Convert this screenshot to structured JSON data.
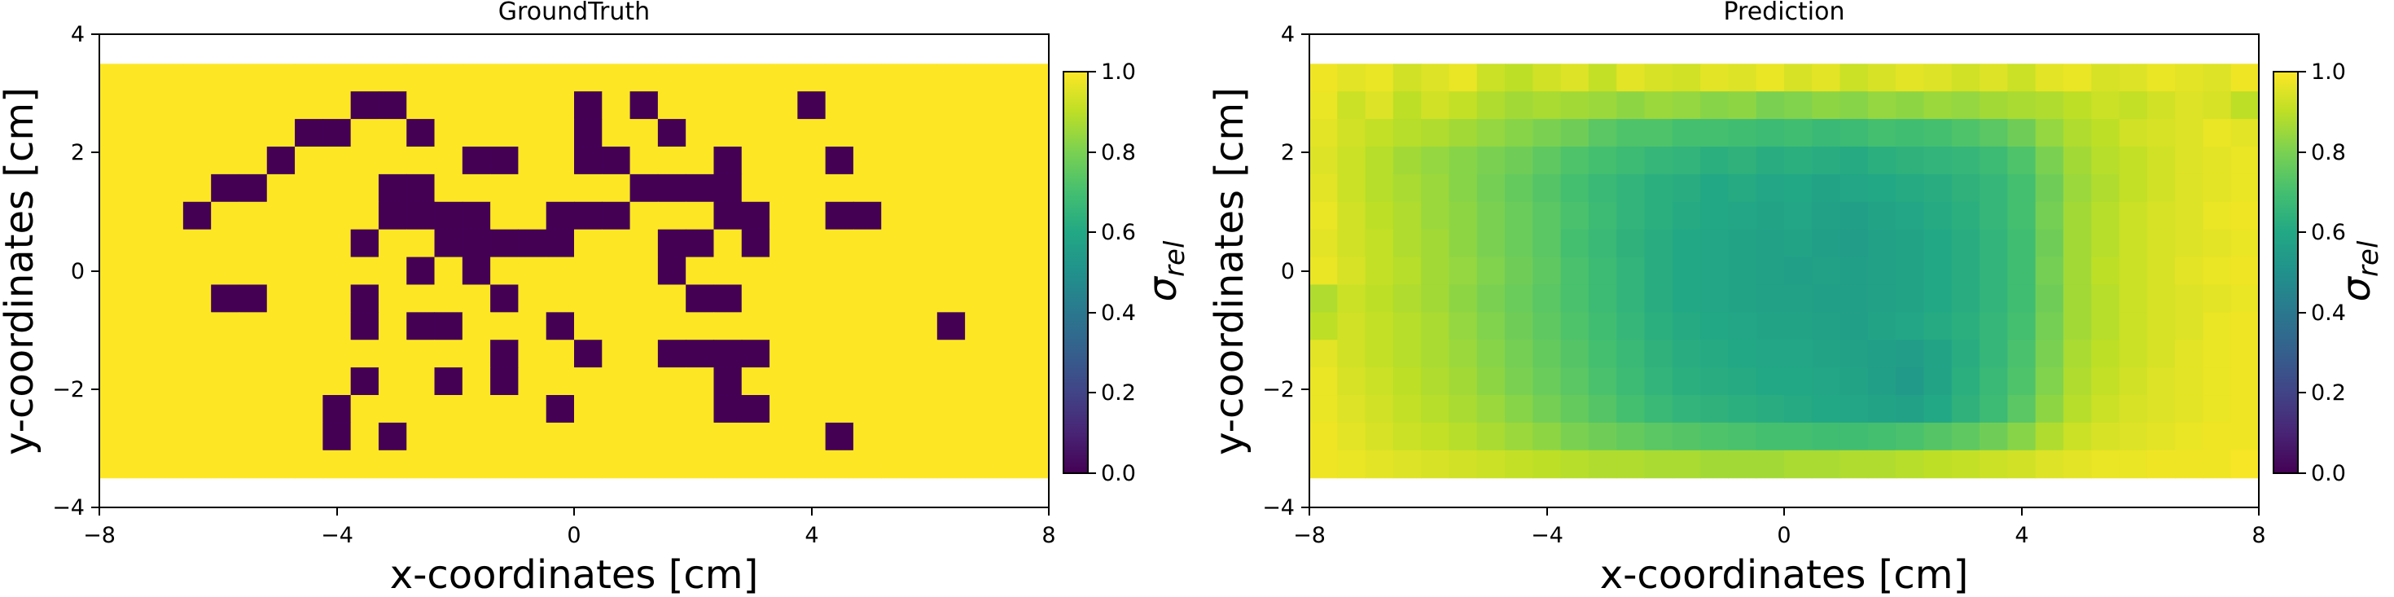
{
  "colors": {
    "background": "#ffffff",
    "axis": "#000000",
    "colormap": "viridis"
  },
  "chart_data": [
    {
      "type": "heatmap",
      "title": "GroundTruth",
      "xlabel": "x-coordinates [cm]",
      "ylabel": "y-coordinates [cm]",
      "xlim": [
        -8,
        8
      ],
      "ylim": [
        -4,
        4
      ],
      "xticks": [
        -8,
        -4,
        0,
        4,
        8
      ],
      "yticks": [
        -4,
        -2,
        0,
        2,
        4
      ],
      "xtick_labels": [
        "−8",
        "−4",
        "0",
        "4",
        "8"
      ],
      "ytick_labels": [
        "−4",
        "−2",
        "0",
        "2",
        "4"
      ],
      "colorbar": {
        "label": "σ",
        "label_sub": "rel",
        "range": [
          0,
          1
        ],
        "ticks": [
          "0.0",
          "0.2",
          "0.4",
          "0.6",
          "0.8",
          "1.0"
        ]
      },
      "grid": {
        "x_start": -8,
        "x_end": 8,
        "y_start": 3.5,
        "y_end": -3.5,
        "cols": 34,
        "rows": 15
      },
      "values": [
        [
          1,
          1,
          1,
          1,
          1,
          1,
          1,
          1,
          1,
          1,
          1,
          1,
          1,
          1,
          1,
          1,
          1,
          1,
          1,
          1,
          1,
          1,
          1,
          1,
          1,
          1,
          1,
          1,
          1,
          1,
          1,
          1,
          1,
          1
        ],
        [
          1,
          1,
          1,
          1,
          1,
          1,
          1,
          1,
          1,
          0,
          0,
          1,
          1,
          1,
          1,
          1,
          1,
          0,
          1,
          0,
          1,
          1,
          1,
          1,
          1,
          0,
          1,
          1,
          1,
          1,
          1,
          1,
          1,
          1
        ],
        [
          1,
          1,
          1,
          1,
          1,
          1,
          1,
          0,
          0,
          1,
          1,
          0,
          1,
          1,
          1,
          1,
          1,
          0,
          1,
          1,
          0,
          1,
          1,
          1,
          1,
          1,
          1,
          1,
          1,
          1,
          1,
          1,
          1,
          1
        ],
        [
          1,
          1,
          1,
          1,
          1,
          1,
          0,
          1,
          1,
          1,
          1,
          1,
          1,
          0,
          0,
          1,
          1,
          0,
          0,
          1,
          1,
          1,
          0,
          1,
          1,
          1,
          0,
          1,
          1,
          1,
          1,
          1,
          1,
          1
        ],
        [
          1,
          1,
          1,
          1,
          0,
          0,
          1,
          1,
          1,
          1,
          0,
          0,
          1,
          1,
          1,
          1,
          1,
          1,
          1,
          0,
          0,
          0,
          0,
          1,
          1,
          1,
          1,
          1,
          1,
          1,
          1,
          1,
          1,
          1
        ],
        [
          1,
          1,
          1,
          0,
          1,
          1,
          1,
          1,
          1,
          1,
          0,
          0,
          0,
          0,
          1,
          1,
          0,
          0,
          0,
          1,
          1,
          1,
          0,
          0,
          1,
          1,
          0,
          0,
          1,
          1,
          1,
          1,
          1,
          1
        ],
        [
          1,
          1,
          1,
          1,
          1,
          1,
          1,
          1,
          1,
          0,
          1,
          1,
          0,
          0,
          0,
          0,
          0,
          1,
          1,
          1,
          0,
          0,
          1,
          0,
          1,
          1,
          1,
          1,
          1,
          1,
          1,
          1,
          1,
          1
        ],
        [
          1,
          1,
          1,
          1,
          1,
          1,
          1,
          1,
          1,
          1,
          1,
          0,
          1,
          0,
          1,
          1,
          1,
          1,
          1,
          1,
          0,
          1,
          1,
          1,
          1,
          1,
          1,
          1,
          1,
          1,
          1,
          1,
          1,
          1
        ],
        [
          1,
          1,
          1,
          1,
          0,
          0,
          1,
          1,
          1,
          0,
          1,
          1,
          1,
          1,
          0,
          1,
          1,
          1,
          1,
          1,
          1,
          0,
          0,
          1,
          1,
          1,
          1,
          1,
          1,
          1,
          1,
          1,
          1,
          1
        ],
        [
          1,
          1,
          1,
          1,
          1,
          1,
          1,
          1,
          1,
          0,
          1,
          0,
          0,
          1,
          1,
          1,
          0,
          1,
          1,
          1,
          1,
          1,
          1,
          1,
          1,
          1,
          1,
          1,
          1,
          1,
          0,
          1,
          1,
          1
        ],
        [
          1,
          1,
          1,
          1,
          1,
          1,
          1,
          1,
          1,
          1,
          1,
          1,
          1,
          1,
          0,
          1,
          1,
          0,
          1,
          1,
          0,
          0,
          0,
          0,
          1,
          1,
          1,
          1,
          1,
          1,
          1,
          1,
          1,
          1
        ],
        [
          1,
          1,
          1,
          1,
          1,
          1,
          1,
          1,
          1,
          0,
          1,
          1,
          0,
          1,
          0,
          1,
          1,
          1,
          1,
          1,
          1,
          1,
          0,
          1,
          1,
          1,
          1,
          1,
          1,
          1,
          1,
          1,
          1,
          1
        ],
        [
          1,
          1,
          1,
          1,
          1,
          1,
          1,
          1,
          0,
          1,
          1,
          1,
          1,
          1,
          1,
          1,
          0,
          1,
          1,
          1,
          1,
          1,
          0,
          0,
          1,
          1,
          1,
          1,
          1,
          1,
          1,
          1,
          1,
          1
        ],
        [
          1,
          1,
          1,
          1,
          1,
          1,
          1,
          1,
          0,
          1,
          0,
          1,
          1,
          1,
          1,
          1,
          1,
          1,
          1,
          1,
          1,
          1,
          1,
          1,
          1,
          1,
          0,
          1,
          1,
          1,
          1,
          1,
          1,
          1
        ],
        [
          1,
          1,
          1,
          1,
          1,
          1,
          1,
          1,
          1,
          1,
          1,
          1,
          1,
          1,
          1,
          1,
          1,
          1,
          1,
          1,
          1,
          1,
          1,
          1,
          1,
          1,
          1,
          1,
          1,
          1,
          1,
          1,
          1,
          1
        ]
      ]
    },
    {
      "type": "heatmap",
      "title": "Prediction",
      "xlabel": "x-coordinates [cm]",
      "ylabel": "y-coordinates [cm]",
      "xlim": [
        -8,
        8
      ],
      "ylim": [
        -4,
        4
      ],
      "xticks": [
        -8,
        -4,
        0,
        4,
        8
      ],
      "yticks": [
        -4,
        -2,
        0,
        2,
        4
      ],
      "xtick_labels": [
        "−8",
        "−4",
        "0",
        "4",
        "8"
      ],
      "ytick_labels": [
        "−4",
        "−2",
        "0",
        "2",
        "4"
      ],
      "colorbar": {
        "label": "σ",
        "label_sub": "rel",
        "range": [
          0,
          1
        ],
        "ticks": [
          "0.0",
          "0.2",
          "0.4",
          "0.6",
          "0.8",
          "1.0"
        ]
      },
      "grid": {
        "x_start": -8,
        "x_end": 8,
        "y_start": 3.5,
        "y_end": -3.5,
        "cols": 34,
        "rows": 15
      },
      "values": [
        [
          0.98,
          0.96,
          0.97,
          0.93,
          0.95,
          0.97,
          0.92,
          0.9,
          0.93,
          0.95,
          0.91,
          0.96,
          0.94,
          0.93,
          0.96,
          0.95,
          0.97,
          0.94,
          0.96,
          0.92,
          0.94,
          0.96,
          0.95,
          0.93,
          0.95,
          0.92,
          0.96,
          0.97,
          0.94,
          0.95,
          0.97,
          0.96,
          0.95,
          0.98
        ],
        [
          0.97,
          0.92,
          0.95,
          0.9,
          0.93,
          0.91,
          0.88,
          0.86,
          0.87,
          0.86,
          0.85,
          0.83,
          0.85,
          0.84,
          0.82,
          0.83,
          0.8,
          0.81,
          0.83,
          0.82,
          0.84,
          0.83,
          0.85,
          0.84,
          0.86,
          0.87,
          0.88,
          0.9,
          0.92,
          0.91,
          0.93,
          0.95,
          0.94,
          0.9
        ],
        [
          0.96,
          0.93,
          0.91,
          0.89,
          0.88,
          0.86,
          0.84,
          0.82,
          0.8,
          0.78,
          0.74,
          0.72,
          0.72,
          0.7,
          0.7,
          0.69,
          0.68,
          0.69,
          0.67,
          0.68,
          0.7,
          0.69,
          0.7,
          0.72,
          0.74,
          0.78,
          0.84,
          0.88,
          0.9,
          0.93,
          0.94,
          0.95,
          0.97,
          0.96
        ],
        [
          0.95,
          0.92,
          0.89,
          0.86,
          0.84,
          0.82,
          0.8,
          0.78,
          0.75,
          0.72,
          0.7,
          0.68,
          0.66,
          0.65,
          0.63,
          0.64,
          0.62,
          0.63,
          0.62,
          0.61,
          0.63,
          0.64,
          0.65,
          0.66,
          0.68,
          0.72,
          0.8,
          0.86,
          0.89,
          0.91,
          0.93,
          0.95,
          0.96,
          0.97
        ],
        [
          0.96,
          0.92,
          0.89,
          0.87,
          0.85,
          0.82,
          0.79,
          0.76,
          0.73,
          0.7,
          0.67,
          0.65,
          0.63,
          0.62,
          0.6,
          0.61,
          0.59,
          0.6,
          0.58,
          0.59,
          0.6,
          0.61,
          0.62,
          0.64,
          0.66,
          0.7,
          0.78,
          0.85,
          0.88,
          0.91,
          0.93,
          0.95,
          0.96,
          0.97
        ],
        [
          0.97,
          0.93,
          0.9,
          0.88,
          0.85,
          0.83,
          0.8,
          0.77,
          0.74,
          0.71,
          0.68,
          0.65,
          0.63,
          0.61,
          0.6,
          0.59,
          0.58,
          0.59,
          0.57,
          0.56,
          0.58,
          0.59,
          0.61,
          0.63,
          0.66,
          0.7,
          0.79,
          0.86,
          0.89,
          0.92,
          0.94,
          0.95,
          0.97,
          0.98
        ],
        [
          0.96,
          0.93,
          0.91,
          0.88,
          0.86,
          0.83,
          0.8,
          0.77,
          0.74,
          0.7,
          0.67,
          0.64,
          0.62,
          0.6,
          0.59,
          0.58,
          0.57,
          0.58,
          0.56,
          0.55,
          0.57,
          0.58,
          0.6,
          0.62,
          0.65,
          0.69,
          0.78,
          0.86,
          0.89,
          0.92,
          0.94,
          0.95,
          0.96,
          0.97
        ],
        [
          0.97,
          0.94,
          0.91,
          0.89,
          0.86,
          0.84,
          0.81,
          0.78,
          0.75,
          0.71,
          0.68,
          0.65,
          0.62,
          0.6,
          0.59,
          0.58,
          0.57,
          0.56,
          0.57,
          0.56,
          0.57,
          0.58,
          0.6,
          0.62,
          0.65,
          0.69,
          0.79,
          0.86,
          0.9,
          0.92,
          0.94,
          0.96,
          0.97,
          0.98
        ],
        [
          0.88,
          0.92,
          0.9,
          0.88,
          0.86,
          0.83,
          0.8,
          0.77,
          0.74,
          0.71,
          0.68,
          0.65,
          0.62,
          0.6,
          0.59,
          0.58,
          0.57,
          0.57,
          0.56,
          0.56,
          0.57,
          0.58,
          0.6,
          0.62,
          0.65,
          0.69,
          0.78,
          0.86,
          0.89,
          0.92,
          0.94,
          0.95,
          0.96,
          0.97
        ],
        [
          0.9,
          0.93,
          0.91,
          0.89,
          0.87,
          0.84,
          0.81,
          0.78,
          0.75,
          0.72,
          0.69,
          0.66,
          0.63,
          0.61,
          0.6,
          0.59,
          0.58,
          0.58,
          0.57,
          0.56,
          0.58,
          0.59,
          0.61,
          0.63,
          0.66,
          0.7,
          0.79,
          0.86,
          0.89,
          0.92,
          0.94,
          0.95,
          0.97,
          0.98
        ],
        [
          0.96,
          0.93,
          0.91,
          0.89,
          0.87,
          0.85,
          0.82,
          0.79,
          0.76,
          0.73,
          0.7,
          0.67,
          0.64,
          0.62,
          0.61,
          0.6,
          0.59,
          0.59,
          0.58,
          0.57,
          0.56,
          0.55,
          0.58,
          0.62,
          0.66,
          0.71,
          0.8,
          0.87,
          0.9,
          0.92,
          0.94,
          0.96,
          0.97,
          0.98
        ],
        [
          0.97,
          0.94,
          0.92,
          0.9,
          0.88,
          0.86,
          0.83,
          0.8,
          0.77,
          0.74,
          0.71,
          0.68,
          0.65,
          0.63,
          0.62,
          0.61,
          0.6,
          0.6,
          0.59,
          0.58,
          0.56,
          0.54,
          0.58,
          0.63,
          0.67,
          0.72,
          0.81,
          0.88,
          0.91,
          0.93,
          0.95,
          0.96,
          0.97,
          0.98
        ],
        [
          0.97,
          0.95,
          0.93,
          0.91,
          0.89,
          0.87,
          0.85,
          0.82,
          0.79,
          0.76,
          0.73,
          0.7,
          0.67,
          0.65,
          0.64,
          0.63,
          0.62,
          0.61,
          0.6,
          0.59,
          0.58,
          0.57,
          0.6,
          0.64,
          0.68,
          0.74,
          0.83,
          0.89,
          0.92,
          0.94,
          0.95,
          0.96,
          0.97,
          0.98
        ],
        [
          0.98,
          0.96,
          0.94,
          0.92,
          0.91,
          0.89,
          0.87,
          0.85,
          0.83,
          0.8,
          0.78,
          0.76,
          0.74,
          0.73,
          0.72,
          0.71,
          0.7,
          0.7,
          0.69,
          0.69,
          0.7,
          0.71,
          0.73,
          0.75,
          0.78,
          0.82,
          0.88,
          0.92,
          0.94,
          0.95,
          0.96,
          0.97,
          0.98,
          0.98
        ],
        [
          0.98,
          0.97,
          0.96,
          0.95,
          0.94,
          0.93,
          0.92,
          0.91,
          0.9,
          0.89,
          0.88,
          0.88,
          0.87,
          0.87,
          0.86,
          0.86,
          0.86,
          0.87,
          0.87,
          0.88,
          0.88,
          0.89,
          0.9,
          0.91,
          0.92,
          0.93,
          0.95,
          0.96,
          0.97,
          0.97,
          0.98,
          0.98,
          0.98,
          0.99
        ]
      ]
    }
  ]
}
